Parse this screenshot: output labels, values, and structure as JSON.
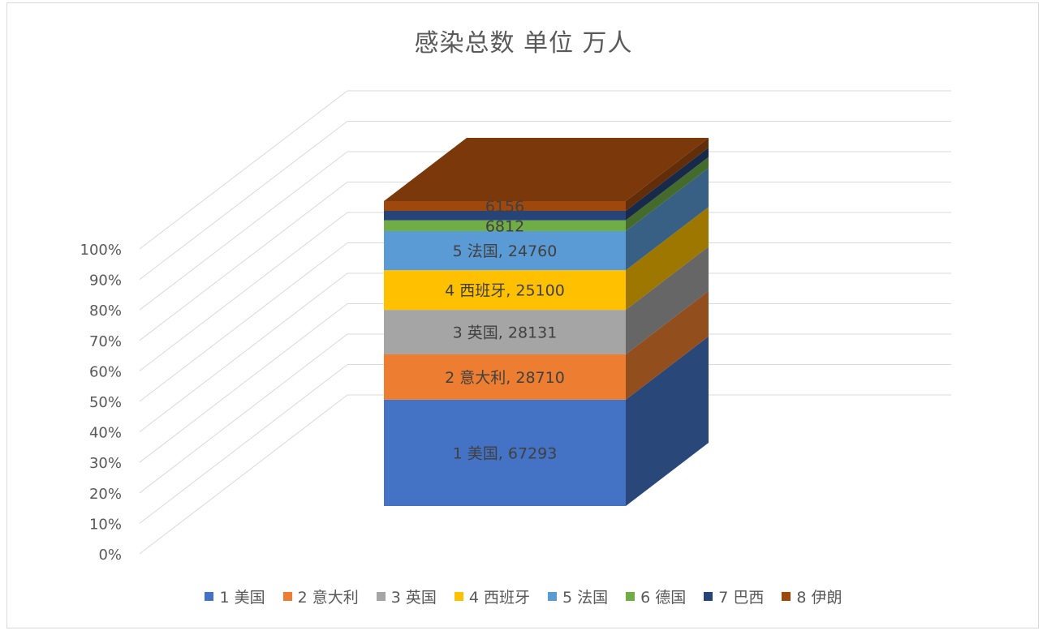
{
  "chart_data": {
    "type": "bar",
    "subtype": "3d-100%-stacked-column",
    "title": "感染总数 单位 万人",
    "y_ticks": [
      "0%",
      "10%",
      "20%",
      "30%",
      "40%",
      "50%",
      "60%",
      "70%",
      "80%",
      "90%",
      "100%"
    ],
    "ylim": [
      0,
      100
    ],
    "grid": true,
    "legend_position": "bottom",
    "series": [
      {
        "name": "1 美国",
        "value": 67293,
        "color": "#4472C4",
        "label": "1 美国, 67293"
      },
      {
        "name": "2 意大利",
        "value": 28710,
        "color": "#ED7D31",
        "label": "2 意大利, 28710"
      },
      {
        "name": "3 英国",
        "value": 28131,
        "color": "#A5A5A5",
        "label": "3 英国, 28131"
      },
      {
        "name": "4 西班牙",
        "value": 25100,
        "color": "#FFC000",
        "label": "4 西班牙, 25100"
      },
      {
        "name": "5 法国",
        "value": 24760,
        "color": "#5B9BD5",
        "label": "5 法国, 24760"
      },
      {
        "name": "6 德国",
        "value": 6812,
        "color": "#70AD47",
        "label": "6812"
      },
      {
        "name": "7 巴西",
        "value": 6000,
        "color": "#264478",
        "label": ""
      },
      {
        "name": "8 伊朗",
        "value": 6156,
        "color": "#9E480E",
        "label": "6156"
      }
    ]
  }
}
